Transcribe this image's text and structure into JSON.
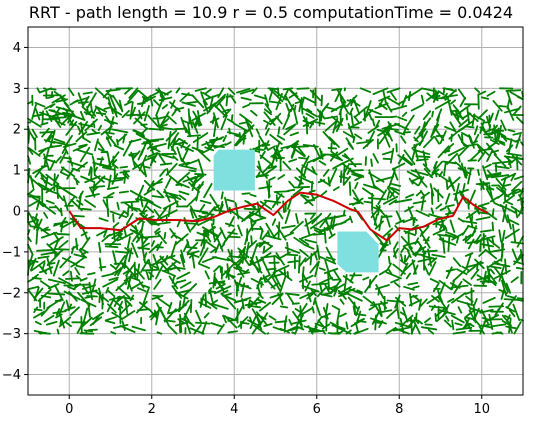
{
  "chart_data": {
    "type": "line",
    "title": "RRT - path length = 10.9 r = 0.5 computationTime = 0.0424",
    "xlabel": "",
    "ylabel": "",
    "xlim": [
      -1,
      11
    ],
    "ylim": [
      -4.5,
      4.5
    ],
    "xticks": [
      0,
      2,
      4,
      6,
      8,
      10
    ],
    "yticks": [
      -4,
      -3,
      -2,
      -1,
      0,
      1,
      2,
      3,
      4
    ],
    "grid": true,
    "colors": {
      "tree": "#008000",
      "path": "#cc0000",
      "obstacle": "#80dfdf"
    },
    "sampling_region": {
      "x": [
        -1,
        11
      ],
      "y": [
        -3,
        3
      ]
    },
    "obstacles": [
      {
        "polygon": [
          [
            3.5,
            0.5
          ],
          [
            3.5,
            1.35
          ],
          [
            3.62,
            1.5
          ],
          [
            4.5,
            1.5
          ],
          [
            4.5,
            0.5
          ]
        ]
      },
      {
        "polygon": [
          [
            6.5,
            -0.5
          ],
          [
            6.5,
            -1.3
          ],
          [
            6.72,
            -1.5
          ],
          [
            7.5,
            -1.5
          ],
          [
            7.5,
            -0.82
          ],
          [
            7.2,
            -0.5
          ]
        ]
      }
    ],
    "series": [
      {
        "role": "path",
        "x": [
          0,
          0.28,
          0.75,
          1.25,
          1.7,
          2.1,
          2.6,
          3.1,
          3.5,
          3.9,
          4.2,
          4.55,
          4.95,
          5.3,
          5.6,
          6.0,
          6.4,
          6.8,
          7.0,
          7.3,
          7.7,
          8.0,
          8.3,
          8.6,
          8.95,
          9.3,
          9.55,
          9.8,
          10.0,
          10.15
        ],
        "y": [
          0,
          -0.42,
          -0.42,
          -0.47,
          -0.18,
          -0.22,
          -0.22,
          -0.25,
          -0.15,
          0.02,
          0.1,
          0.18,
          -0.1,
          0.25,
          0.45,
          0.4,
          0.25,
          0.05,
          -0.02,
          -0.45,
          -0.72,
          -0.42,
          -0.45,
          -0.38,
          -0.2,
          -0.12,
          0.35,
          0.15,
          0.02,
          -0.05
        ]
      }
    ]
  }
}
